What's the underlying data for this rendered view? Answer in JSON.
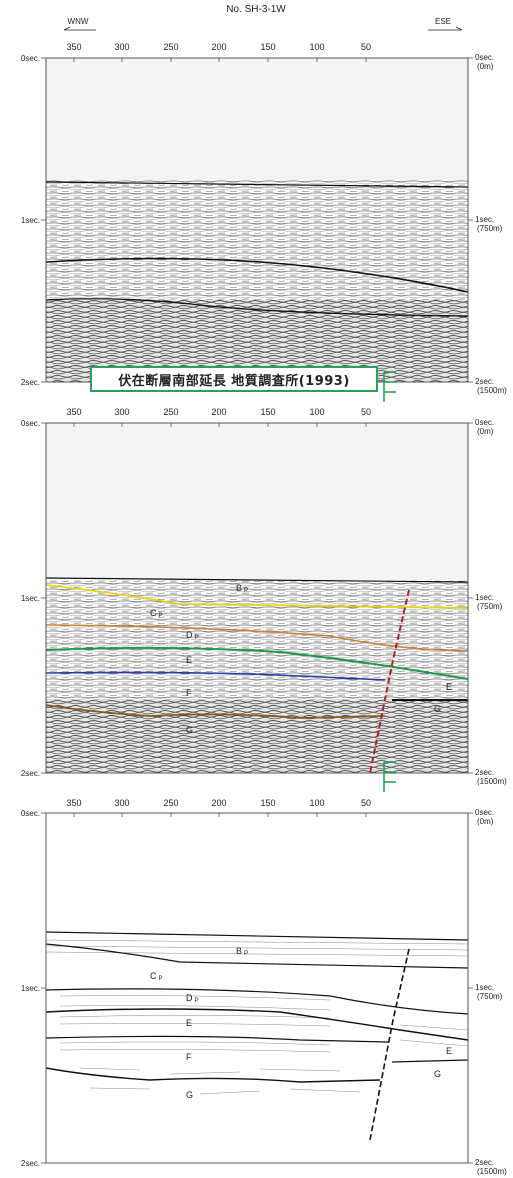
{
  "header": {
    "line_id": "No. SH-3-1W",
    "dir_left": "WNW",
    "dir_right": "ESE"
  },
  "banner": {
    "text": "伏在断層南部延長  地質調査所(1993)",
    "border_color": "#2aa05a"
  },
  "axes": {
    "top_ticks": [
      "350",
      "300",
      "250",
      "200",
      "150",
      "100",
      "50"
    ],
    "left_labels": [
      "0sec.",
      "1sec.",
      "2sec."
    ],
    "right_labels": [
      {
        "line1": "0sec.",
        "line2": "(0m)"
      },
      {
        "line1": "1sec.",
        "line2": "(750m)"
      },
      {
        "line1": "2sec.",
        "line2": "(1500m)"
      }
    ]
  },
  "units": [
    "B",
    "C",
    "D",
    "E",
    "F",
    "G"
  ],
  "unit_subscript": "P",
  "horizon_colors": {
    "B": "#e6d21a",
    "C": "#c8823a",
    "D": "#1f9a4a",
    "E": "#2a3bb0",
    "F": "#8a5a20",
    "fault": "#b0202a"
  },
  "symbol_color": "#2aa05a"
}
